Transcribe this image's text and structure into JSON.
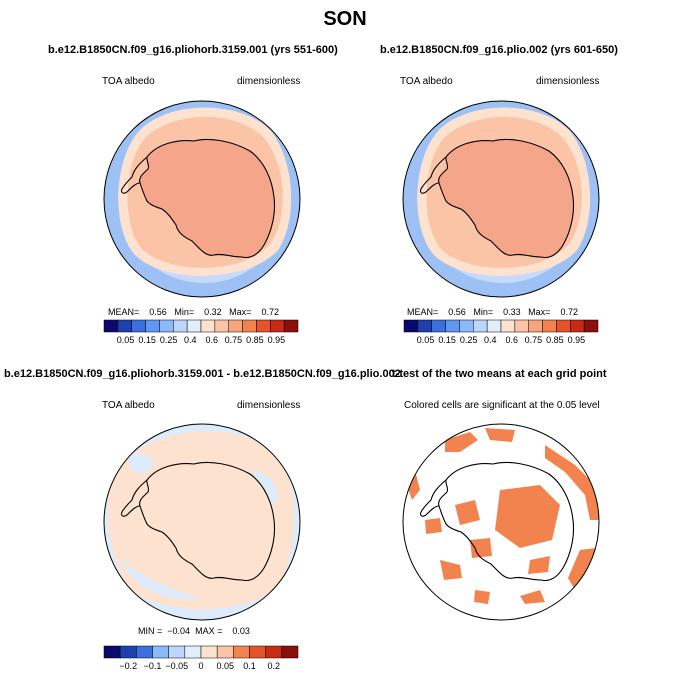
{
  "title": "SON",
  "colors": {
    "continent_fill": "#f5a58a",
    "ocean_core": "#fbc4a6",
    "sea_ice_edge": "#fde3cf",
    "outer_band_light": "#c6dbfb",
    "outer_band": "#9dc1f5",
    "diff_light_orange": "#fde3cf",
    "diff_light_blue": "#ddebfb",
    "sig_cell": "#f2834f",
    "coast": "#000000"
  },
  "panels": [
    {
      "title": "b.e12.B1850CN.f09_g16.pliohorb.3159.001 (yrs 551-600)",
      "left_label": "TOA albedo",
      "right_label": "dimensionless",
      "stats": {
        "mean_label": "MEAN=",
        "mean": "0.56",
        "min_label": "Min=",
        "min": "0.32",
        "max_label": "Max=",
        "max": "0.72"
      }
    },
    {
      "title": "b.e12.B1850CN.f09_g16.plio.002 (yrs 601-650)",
      "left_label": "TOA albedo",
      "right_label": "dimensionless",
      "stats": {
        "mean_label": "MEAN=",
        "mean": "0.56",
        "min_label": "Min=",
        "min": "0.33",
        "max_label": "Max=",
        "max": "0.72"
      }
    },
    {
      "title": "b.e12.B1850CN.f09_g16.pliohorb.3159.001 - b.e12.B1850CN.f09_g16.plio.002",
      "left_label": "TOA albedo",
      "right_label": "dimensionless",
      "stats": {
        "min_label": "MIN =",
        "min": "−0.04",
        "max_label": "MAX =",
        "max": "0.03"
      }
    },
    {
      "title": "t-test of the two means at each grid point",
      "subtitle": "Colored cells are significant at the 0.05 level"
    }
  ],
  "chart_data": [
    {
      "type": "heatmap",
      "projection": "south polar stereographic",
      "variable": "TOA albedo",
      "units": "dimensionless",
      "stats": {
        "mean": 0.56,
        "min": 0.32,
        "max": 0.72
      },
      "colorbar": {
        "ticks": [
          "0.05",
          "0.15",
          "0.25",
          "0.4",
          "0.6",
          "0.75",
          "0.85",
          "0.95"
        ],
        "colors": [
          "#0a0a6e",
          "#1f3fae",
          "#3a6fde",
          "#5f97f2",
          "#8cb9f8",
          "#bdd6fb",
          "#e3eefc",
          "#fde3cf",
          "#fbc4a6",
          "#f8a47f",
          "#f2834f",
          "#e5532a",
          "#c72b17",
          "#8b0f0a"
        ]
      }
    },
    {
      "type": "heatmap",
      "projection": "south polar stereographic",
      "variable": "TOA albedo",
      "units": "dimensionless",
      "stats": {
        "mean": 0.56,
        "min": 0.33,
        "max": 0.72
      },
      "colorbar": {
        "ticks": [
          "0.05",
          "0.15",
          "0.25",
          "0.4",
          "0.6",
          "0.75",
          "0.85",
          "0.95"
        ],
        "colors": [
          "#0a0a6e",
          "#1f3fae",
          "#3a6fde",
          "#5f97f2",
          "#8cb9f8",
          "#bdd6fb",
          "#e3eefc",
          "#fde3cf",
          "#fbc4a6",
          "#f8a47f",
          "#f2834f",
          "#e5532a",
          "#c72b17",
          "#8b0f0a"
        ]
      }
    },
    {
      "type": "heatmap",
      "projection": "south polar stereographic",
      "variable": "TOA albedo",
      "units": "dimensionless",
      "stats": {
        "min": -0.04,
        "max": 0.03
      },
      "colorbar": {
        "ticks": [
          "−0.2",
          "−0.1",
          "−0.05",
          "0",
          "0.05",
          "0.1",
          "0.2"
        ],
        "colors": [
          "#0a0a6e",
          "#1f3fae",
          "#3a6fde",
          "#8cb9f8",
          "#bdd6fb",
          "#e3eefc",
          "#fde3cf",
          "#fbc4a6",
          "#f2834f",
          "#e5532a",
          "#c72b17",
          "#8b0f0a"
        ]
      }
    },
    {
      "type": "heatmap",
      "projection": "south polar stereographic",
      "significance_level": 0.05
    }
  ]
}
